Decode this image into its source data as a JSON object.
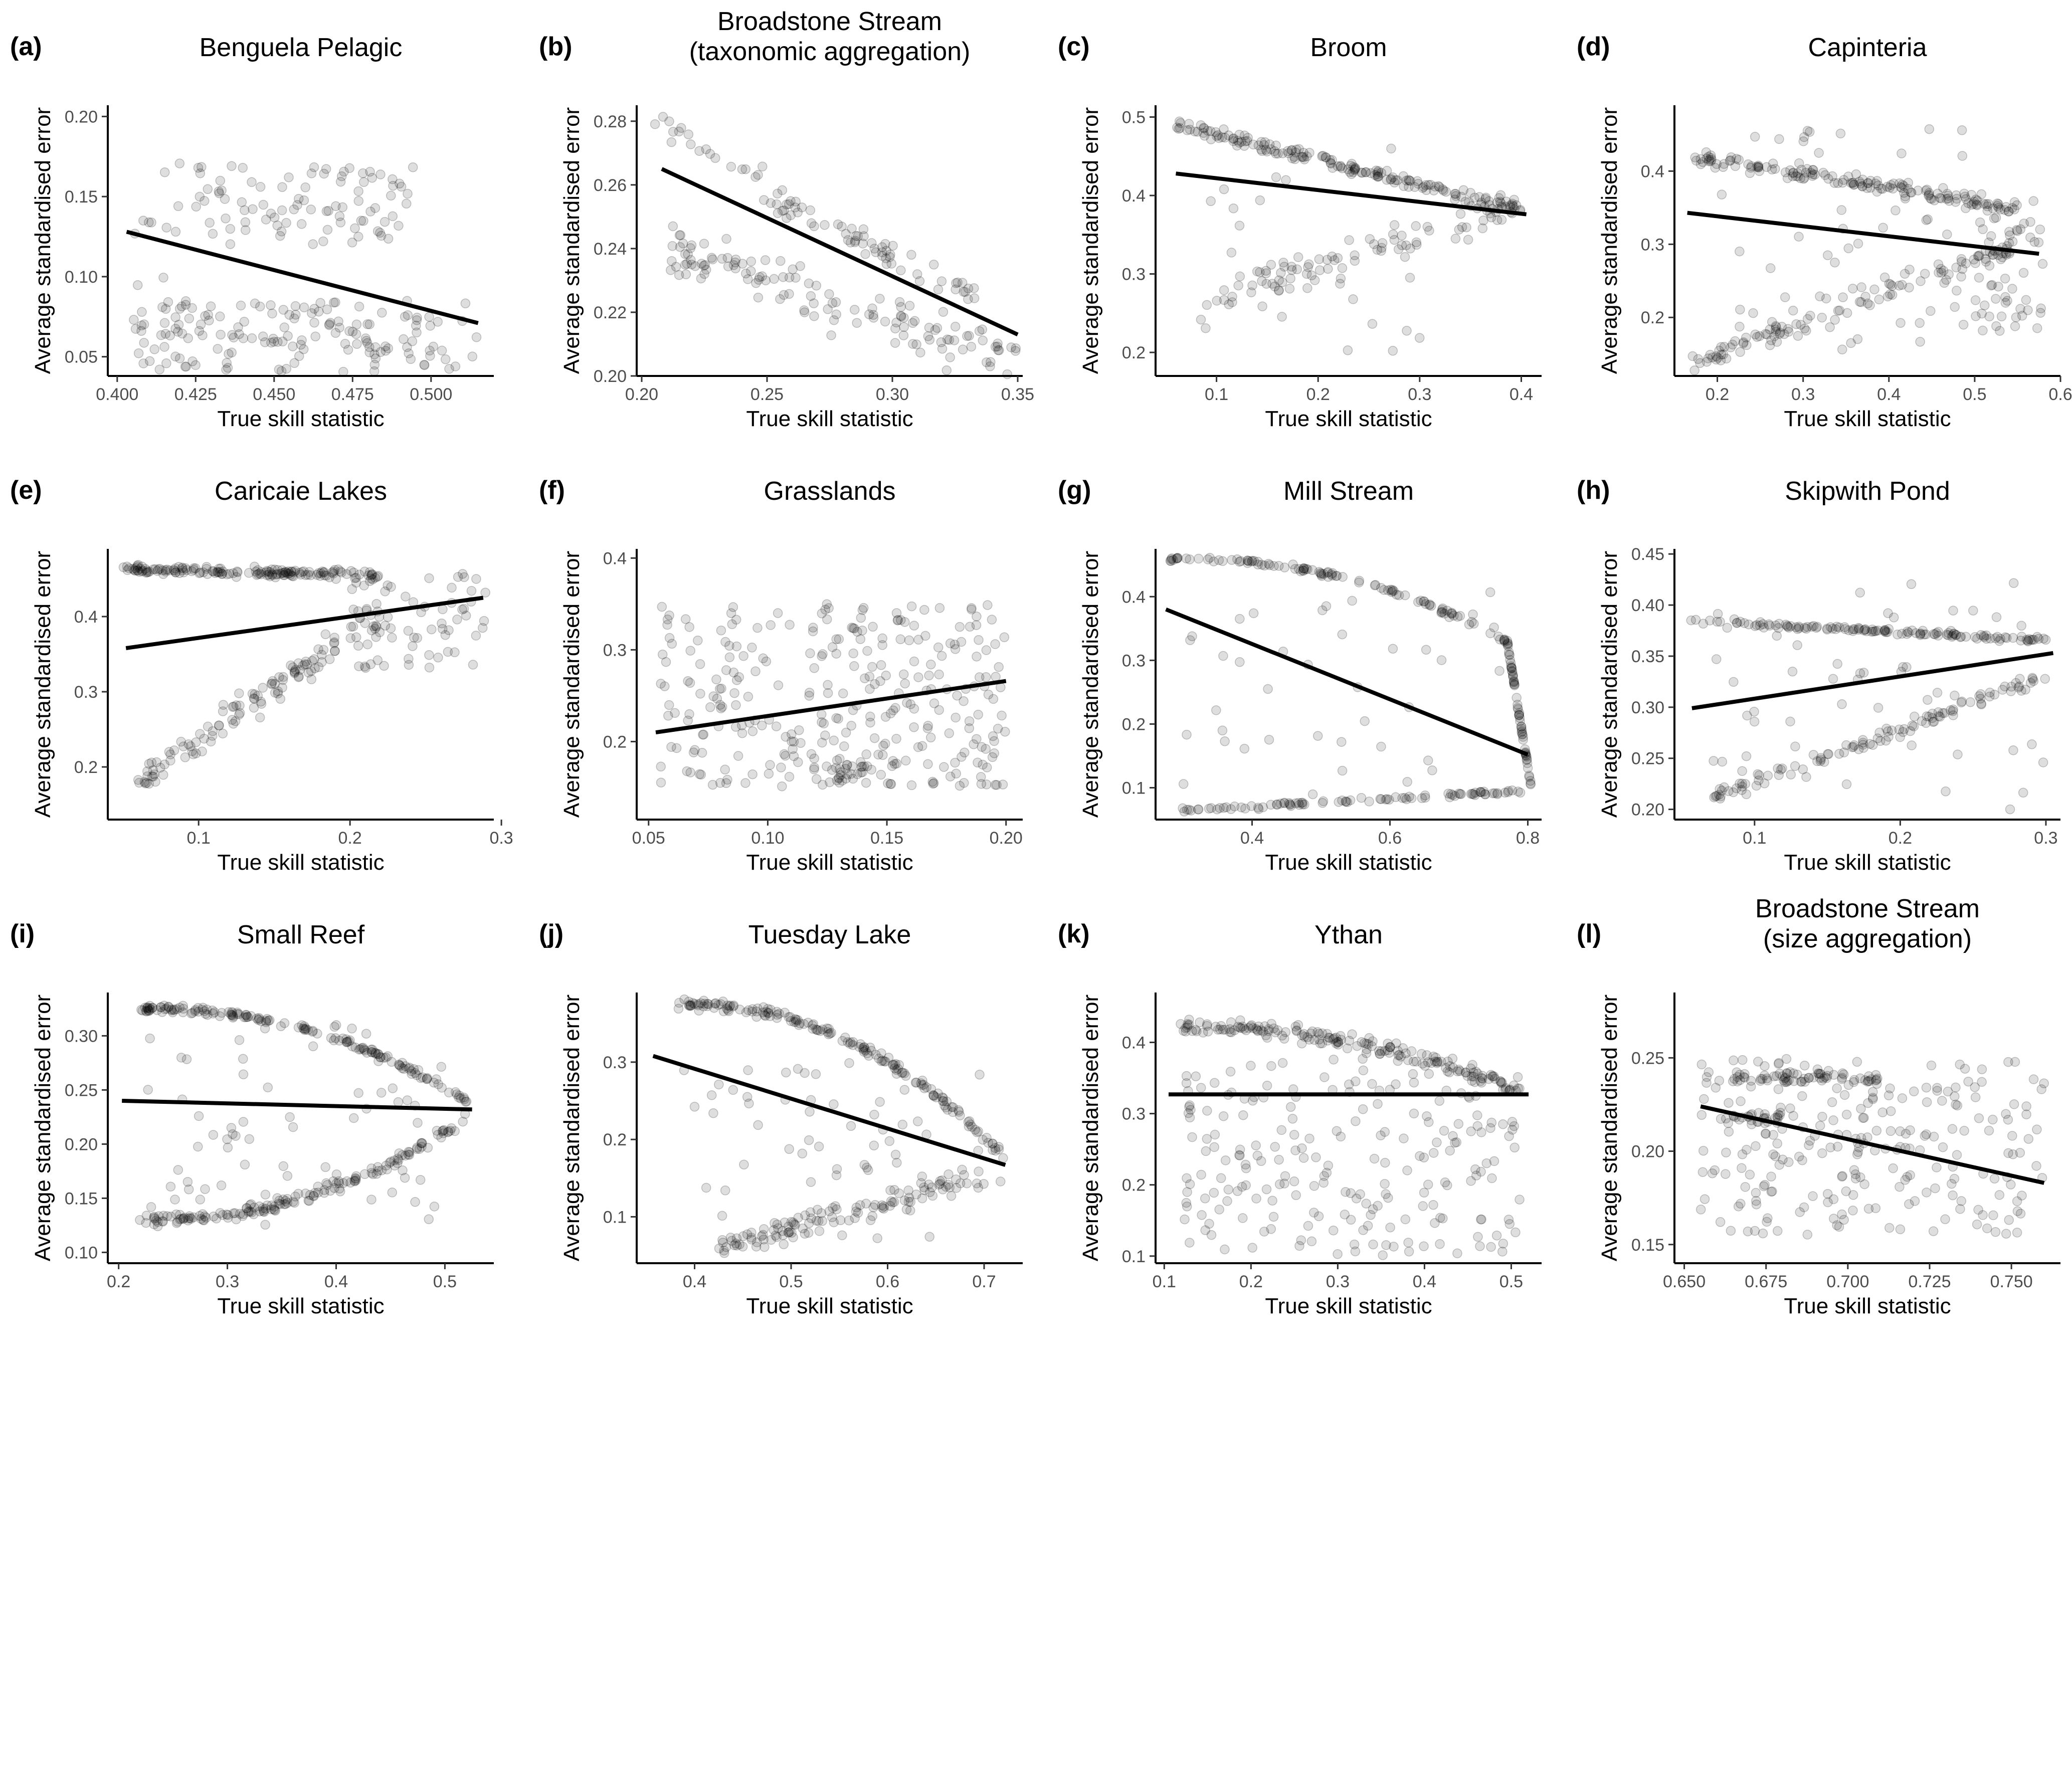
{
  "colors": {
    "point": "#000000",
    "point_opacity": 0.13,
    "trend_line": "#000000",
    "background": "#ffffff"
  },
  "chart_data": [
    {
      "type": "scatter",
      "id": "a",
      "letter": "(a)",
      "title_lines": [
        "Benguela Pelagic"
      ],
      "xlabel": "True skill statistic",
      "ylabel": "Average standardised error",
      "xlim": [
        0.397,
        0.52
      ],
      "ylim": [
        0.038,
        0.207
      ],
      "xticks": [
        0.4,
        0.425,
        0.45,
        0.475,
        0.5
      ],
      "xtick_labels": [
        "0.400",
        "0.425",
        "0.450",
        "0.475",
        "0.500"
      ],
      "yticks": [
        0.05,
        0.1,
        0.15,
        0.2
      ],
      "ytick_labels": [
        "0.05",
        "0.10",
        "0.15",
        "0.20"
      ],
      "trend": {
        "x": [
          0.403,
          0.515
        ],
        "y": [
          0.128,
          0.071
        ]
      },
      "clusters": [
        {
          "n": 150,
          "x": [
            0.405,
            0.515
          ],
          "y": [
            0.04,
            0.085
          ],
          "shape": "box"
        },
        {
          "n": 90,
          "x": [
            0.425,
            0.495
          ],
          "y": [
            0.12,
            0.17
          ],
          "shape": "box"
        },
        {
          "n": 20,
          "x": [
            0.405,
            0.425
          ],
          "y": [
            0.06,
            0.185
          ],
          "shape": "box"
        }
      ]
    },
    {
      "type": "scatter",
      "id": "b",
      "letter": "(b)",
      "title_lines": [
        "Broadstone Stream",
        "(taxonomic aggregation)"
      ],
      "xlabel": "True skill statistic",
      "ylabel": "Average standardised error",
      "xlim": [
        0.198,
        0.352
      ],
      "ylim": [
        0.2,
        0.285
      ],
      "xticks": [
        0.2,
        0.25,
        0.3,
        0.35
      ],
      "xtick_labels": [
        "0.20",
        "0.25",
        "0.30",
        "0.35"
      ],
      "yticks": [
        0.2,
        0.22,
        0.24,
        0.26,
        0.28
      ],
      "ytick_labels": [
        "0.20",
        "0.22",
        "0.24",
        "0.26",
        "0.28"
      ],
      "trend": {
        "x": [
          0.208,
          0.35
        ],
        "y": [
          0.265,
          0.213
        ]
      },
      "clusters": [
        {
          "n": 130,
          "x": [
            0.21,
            0.35
          ],
          "y": [
            0.24,
            0.205
          ],
          "shape": "band",
          "spread": 0.012
        },
        {
          "n": 60,
          "x": [
            0.25,
            0.335
          ],
          "y": [
            0.255,
            0.225
          ],
          "shape": "band",
          "spread": 0.006
        },
        {
          "n": 25,
          "x": [
            0.205,
            0.27
          ],
          "y": [
            0.28,
            0.25
          ],
          "shape": "band",
          "spread": 0.008
        }
      ]
    },
    {
      "type": "scatter",
      "id": "c",
      "letter": "(c)",
      "title_lines": [
        "Broom"
      ],
      "xlabel": "True skill statistic",
      "ylabel": "Average standardised error",
      "xlim": [
        0.04,
        0.42
      ],
      "ylim": [
        0.17,
        0.515
      ],
      "xticks": [
        0.1,
        0.2,
        0.3,
        0.4
      ],
      "xtick_labels": [
        "0.1",
        "0.2",
        "0.3",
        "0.4"
      ],
      "yticks": [
        0.2,
        0.3,
        0.4,
        0.5
      ],
      "ytick_labels": [
        "0.2",
        "0.3",
        "0.4",
        "0.5"
      ],
      "trend": {
        "x": [
          0.06,
          0.405
        ],
        "y": [
          0.428,
          0.376
        ]
      },
      "clusters": [
        {
          "n": 170,
          "x": [
            0.06,
            0.4
          ],
          "y": [
            0.49,
            0.38
          ],
          "shape": "band",
          "spread": 0.012
        },
        {
          "n": 90,
          "x": [
            0.1,
            0.4
          ],
          "y": [
            0.27,
            0.39
          ],
          "shape": "band",
          "spread": 0.03
        },
        {
          "n": 30,
          "x": [
            0.06,
            0.3
          ],
          "y": [
            0.2,
            0.46
          ],
          "shape": "box"
        }
      ]
    },
    {
      "type": "scatter",
      "id": "d",
      "letter": "(d)",
      "title_lines": [
        "Capinteria"
      ],
      "xlabel": "True skill statistic",
      "ylabel": "Average standardised error",
      "xlim": [
        0.15,
        0.6
      ],
      "ylim": [
        0.12,
        0.49
      ],
      "xticks": [
        0.2,
        0.3,
        0.4,
        0.5,
        0.6
      ],
      "xtick_labels": [
        "0.2",
        "0.3",
        "0.4",
        "0.5",
        "0.6"
      ],
      "yticks": [
        0.2,
        0.3,
        0.4
      ],
      "ytick_labels": [
        "0.2",
        "0.3",
        "0.4"
      ],
      "trend": {
        "x": [
          0.165,
          0.575
        ],
        "y": [
          0.343,
          0.287
        ]
      },
      "clusters": [
        {
          "n": 150,
          "x": [
            0.17,
            0.55
          ],
          "y": [
            0.42,
            0.35
          ],
          "shape": "band",
          "spread": 0.015
        },
        {
          "n": 110,
          "x": [
            0.17,
            0.55
          ],
          "y": [
            0.135,
            0.3
          ],
          "shape": "band",
          "spread": 0.02
        },
        {
          "n": 60,
          "x": [
            0.5,
            0.58
          ],
          "y": [
            0.18,
            0.36
          ],
          "shape": "box"
        },
        {
          "n": 60,
          "x": [
            0.2,
            0.5
          ],
          "y": [
            0.15,
            0.46
          ],
          "shape": "box"
        }
      ]
    },
    {
      "type": "scatter",
      "id": "e",
      "letter": "(e)",
      "title_lines": [
        "Caricaie Lakes"
      ],
      "xlabel": "True skill statistic",
      "ylabel": "Average standardised error",
      "xlim": [
        0.04,
        0.295
      ],
      "ylim": [
        0.13,
        0.49
      ],
      "xticks": [
        0.1,
        0.2,
        0.3
      ],
      "xtick_labels": [
        "0.1",
        "0.2",
        "0.3"
      ],
      "yticks": [
        0.2,
        0.3,
        0.4
      ],
      "ytick_labels": [
        "0.2",
        "0.3",
        "0.4"
      ],
      "trend": {
        "x": [
          0.052,
          0.288
        ],
        "y": [
          0.358,
          0.425
        ]
      },
      "clusters": [
        {
          "n": 160,
          "x": [
            0.05,
            0.22
          ],
          "y": [
            0.463,
            0.455
          ],
          "shape": "band",
          "spread": 0.008
        },
        {
          "n": 120,
          "x": [
            0.06,
            0.22
          ],
          "y": [
            0.18,
            0.4
          ],
          "shape": "band",
          "spread": 0.03
        },
        {
          "n": 70,
          "x": [
            0.2,
            0.29
          ],
          "y": [
            0.33,
            0.46
          ],
          "shape": "box"
        }
      ]
    },
    {
      "type": "scatter",
      "id": "f",
      "letter": "(f)",
      "title_lines": [
        "Grasslands"
      ],
      "xlabel": "True skill statistic",
      "ylabel": "Average standardised error",
      "xlim": [
        0.045,
        0.207
      ],
      "ylim": [
        0.115,
        0.41
      ],
      "xticks": [
        0.05,
        0.1,
        0.15,
        0.2
      ],
      "xtick_labels": [
        "0.05",
        "0.10",
        "0.15",
        "0.20"
      ],
      "yticks": [
        0.2,
        0.3,
        0.4
      ],
      "ytick_labels": [
        "0.2",
        "0.3",
        "0.4"
      ],
      "trend": {
        "x": [
          0.053,
          0.2
        ],
        "y": [
          0.21,
          0.266
        ]
      },
      "clusters": [
        {
          "n": 300,
          "x": [
            0.055,
            0.2
          ],
          "y": [
            0.15,
            0.35
          ],
          "shape": "box"
        },
        {
          "n": 25,
          "x": [
            0.125,
            0.142
          ],
          "y": [
            0.155,
            0.175
          ],
          "shape": "box"
        }
      ]
    },
    {
      "type": "scatter",
      "id": "g",
      "letter": "(g)",
      "title_lines": [
        "Mill Stream"
      ],
      "xlabel": "True skill statistic",
      "ylabel": "Average standardised error",
      "xlim": [
        0.26,
        0.82
      ],
      "ylim": [
        0.05,
        0.475
      ],
      "xticks": [
        0.4,
        0.6,
        0.8
      ],
      "xtick_labels": [
        "0.4",
        "0.6",
        "0.8"
      ],
      "yticks": [
        0.1,
        0.2,
        0.3,
        0.4
      ],
      "ytick_labels": [
        "0.1",
        "0.2",
        "0.3",
        "0.4"
      ],
      "trend": {
        "x": [
          0.275,
          0.8
        ],
        "y": [
          0.38,
          0.152
        ]
      },
      "clusters": [
        {
          "n": 110,
          "x": [
            0.28,
            0.77
          ],
          "y": [
            0.46,
            0.33
          ],
          "shape": "arc",
          "spread": 0.006
        },
        {
          "n": 60,
          "x": [
            0.77,
            0.805
          ],
          "y": [
            0.33,
            0.1
          ],
          "shape": "band",
          "spread": 0.006
        },
        {
          "n": 90,
          "x": [
            0.3,
            0.8
          ],
          "y": [
            0.065,
            0.095
          ],
          "shape": "band",
          "spread": 0.006
        },
        {
          "n": 40,
          "x": [
            0.3,
            0.78
          ],
          "y": [
            0.08,
            0.43
          ],
          "shape": "box"
        }
      ]
    },
    {
      "type": "scatter",
      "id": "h",
      "letter": "(h)",
      "title_lines": [
        "Skipwith Pond"
      ],
      "xlabel": "True skill statistic",
      "ylabel": "Average standardised error",
      "xlim": [
        0.045,
        0.31
      ],
      "ylim": [
        0.19,
        0.455
      ],
      "xticks": [
        0.1,
        0.2,
        0.3
      ],
      "xtick_labels": [
        "0.1",
        "0.2",
        "0.3"
      ],
      "yticks": [
        0.2,
        0.25,
        0.3,
        0.35,
        0.4,
        0.45
      ],
      "ytick_labels": [
        "0.20",
        "0.25",
        "0.30",
        "0.35",
        "0.40",
        "0.45"
      ],
      "trend": {
        "x": [
          0.057,
          0.305
        ],
        "y": [
          0.299,
          0.353
        ]
      },
      "clusters": [
        {
          "n": 130,
          "x": [
            0.055,
            0.305
          ],
          "y": [
            0.385,
            0.365
          ],
          "shape": "band",
          "spread": 0.004
        },
        {
          "n": 110,
          "x": [
            0.07,
            0.3
          ],
          "y": [
            0.21,
            0.33
          ],
          "shape": "band",
          "spread": 0.01
        },
        {
          "n": 50,
          "x": [
            0.07,
            0.3
          ],
          "y": [
            0.2,
            0.43
          ],
          "shape": "box"
        }
      ]
    },
    {
      "type": "scatter",
      "id": "i",
      "letter": "(i)",
      "title_lines": [
        "Small Reef"
      ],
      "xlabel": "True skill statistic",
      "ylabel": "Average standardised error",
      "xlim": [
        0.19,
        0.545
      ],
      "ylim": [
        0.09,
        0.34
      ],
      "xticks": [
        0.2,
        0.3,
        0.4,
        0.5
      ],
      "xtick_labels": [
        "0.2",
        "0.3",
        "0.4",
        "0.5"
      ],
      "yticks": [
        0.1,
        0.15,
        0.2,
        0.25,
        0.3
      ],
      "ytick_labels": [
        "0.10",
        "0.15",
        "0.20",
        "0.25",
        "0.30"
      ],
      "trend": {
        "x": [
          0.203,
          0.525
        ],
        "y": [
          0.24,
          0.232
        ]
      },
      "clusters": [
        {
          "n": 160,
          "x": [
            0.22,
            0.52
          ],
          "y": [
            0.325,
            0.24
          ],
          "shape": "arc",
          "spread": 0.005
        },
        {
          "n": 160,
          "x": [
            0.22,
            0.52
          ],
          "y": [
            0.13,
            0.225
          ],
          "shape": "arc",
          "spread": 0.008
        },
        {
          "n": 70,
          "x": [
            0.22,
            0.5
          ],
          "y": [
            0.12,
            0.31
          ],
          "shape": "box"
        }
      ]
    },
    {
      "type": "scatter",
      "id": "j",
      "letter": "(j)",
      "title_lines": [
        "Tuesday Lake"
      ],
      "xlabel": "True skill statistic",
      "ylabel": "Average standardised error",
      "xlim": [
        0.34,
        0.74
      ],
      "ylim": [
        0.04,
        0.39
      ],
      "xticks": [
        0.4,
        0.5,
        0.6,
        0.7
      ],
      "xtick_labels": [
        "0.4",
        "0.5",
        "0.6",
        "0.7"
      ],
      "yticks": [
        0.1,
        0.2,
        0.3
      ],
      "ytick_labels": [
        "0.1",
        "0.2",
        "0.3"
      ],
      "trend": {
        "x": [
          0.357,
          0.722
        ],
        "y": [
          0.308,
          0.167
        ]
      },
      "clusters": [
        {
          "n": 170,
          "x": [
            0.38,
            0.72
          ],
          "y": [
            0.375,
            0.18
          ],
          "shape": "arc",
          "spread": 0.01
        },
        {
          "n": 120,
          "x": [
            0.42,
            0.72
          ],
          "y": [
            0.06,
            0.16
          ],
          "shape": "band",
          "spread": 0.025
        },
        {
          "n": 60,
          "x": [
            0.38,
            0.7
          ],
          "y": [
            0.06,
            0.3
          ],
          "shape": "box"
        }
      ]
    },
    {
      "type": "scatter",
      "id": "k",
      "letter": "(k)",
      "title_lines": [
        "Ythan"
      ],
      "xlabel": "True skill statistic",
      "ylabel": "Average standardised error",
      "xlim": [
        0.09,
        0.535
      ],
      "ylim": [
        0.09,
        0.47
      ],
      "xticks": [
        0.1,
        0.2,
        0.3,
        0.4,
        0.5
      ],
      "xtick_labels": [
        "0.1",
        "0.2",
        "0.3",
        "0.4",
        "0.5"
      ],
      "yticks": [
        0.1,
        0.2,
        0.3,
        0.4
      ],
      "ytick_labels": [
        "0.1",
        "0.2",
        "0.3",
        "0.4"
      ],
      "trend": {
        "x": [
          0.105,
          0.52
        ],
        "y": [
          0.327,
          0.327
        ]
      },
      "clusters": [
        {
          "n": 180,
          "x": [
            0.12,
            0.51
          ],
          "y": [
            0.42,
            0.33
          ],
          "shape": "arc",
          "spread": 0.015
        },
        {
          "n": 220,
          "x": [
            0.12,
            0.51
          ],
          "y": [
            0.1,
            0.38
          ],
          "shape": "box"
        }
      ]
    },
    {
      "type": "scatter",
      "id": "l",
      "letter": "(l)",
      "title_lines": [
        "Broadstone Stream",
        "(size aggregation)"
      ],
      "xlabel": "True skill statistic",
      "ylabel": "Average standardised error",
      "xlim": [
        0.647,
        0.765
      ],
      "ylim": [
        0.14,
        0.285
      ],
      "xticks": [
        0.65,
        0.675,
        0.7,
        0.725,
        0.75
      ],
      "xtick_labels": [
        "0.650",
        "0.675",
        "0.700",
        "0.725",
        "0.750"
      ],
      "yticks": [
        0.15,
        0.2,
        0.25
      ],
      "ytick_labels": [
        "0.15",
        "0.20",
        "0.25"
      ],
      "trend": {
        "x": [
          0.655,
          0.76
        ],
        "y": [
          0.224,
          0.183
        ]
      },
      "clusters": [
        {
          "n": 250,
          "x": [
            0.655,
            0.76
          ],
          "y": [
            0.155,
            0.25
          ],
          "shape": "box"
        },
        {
          "n": 60,
          "x": [
            0.665,
            0.71
          ],
          "y": [
            0.237,
            0.242
          ],
          "shape": "box"
        },
        {
          "n": 20,
          "x": [
            0.665,
            0.68
          ],
          "y": [
            0.215,
            0.22
          ],
          "shape": "box"
        }
      ]
    }
  ]
}
